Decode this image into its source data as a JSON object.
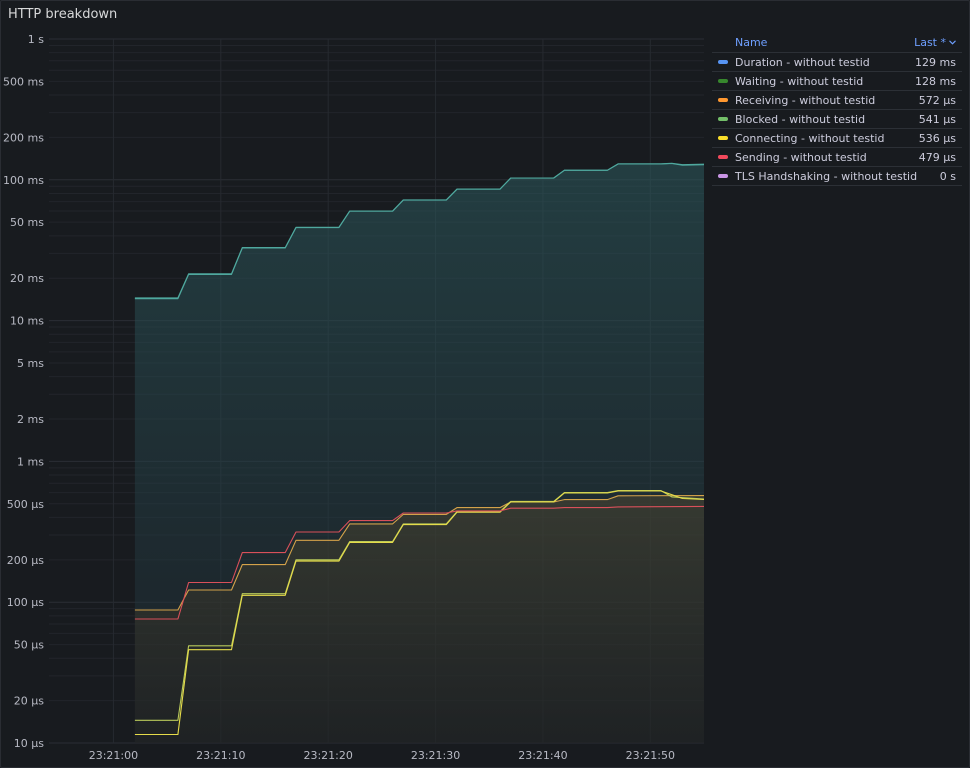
{
  "panel": {
    "title": "HTTP breakdown"
  },
  "legend": {
    "header_name": "Name",
    "header_last": "Last *",
    "sort_icon": "chevron-down-icon"
  },
  "chart_data": {
    "type": "line",
    "yscale": "log",
    "ylim": [
      1e-05,
      1
    ],
    "y_ticks": [
      {
        "v": 1,
        "label": "1 s"
      },
      {
        "v": 0.5,
        "label": "500 ms"
      },
      {
        "v": 0.2,
        "label": "200 ms"
      },
      {
        "v": 0.1,
        "label": "100 ms"
      },
      {
        "v": 0.05,
        "label": "50 ms"
      },
      {
        "v": 0.02,
        "label": "20 ms"
      },
      {
        "v": 0.01,
        "label": "10 ms"
      },
      {
        "v": 0.005,
        "label": "5 ms"
      },
      {
        "v": 0.002,
        "label": "2 ms"
      },
      {
        "v": 0.001,
        "label": "1 ms"
      },
      {
        "v": 0.0005,
        "label": "500 µs"
      },
      {
        "v": 0.0002,
        "label": "200 µs"
      },
      {
        "v": 0.0001,
        "label": "100 µs"
      },
      {
        "v": 5e-05,
        "label": "50 µs"
      },
      {
        "v": 2e-05,
        "label": "20 µs"
      },
      {
        "v": 1e-05,
        "label": "10 µs"
      }
    ],
    "x_ticks": [
      {
        "v": "23:21:00",
        "label": "23:21:00"
      },
      {
        "v": "23:21:10",
        "label": "23:21:10"
      },
      {
        "v": "23:21:20",
        "label": "23:21:20"
      },
      {
        "v": "23:21:30",
        "label": "23:21:30"
      },
      {
        "v": "23:21:40",
        "label": "23:21:40"
      },
      {
        "v": "23:21:50",
        "label": "23:21:50"
      }
    ],
    "xlim": [
      "23:20:54",
      "23:21:55"
    ],
    "grid": true,
    "legend_position": "right",
    "series": [
      {
        "name": "Duration - without testid",
        "color": "#5794f2",
        "last": "129 ms",
        "draw_color": "#4fa89e",
        "fill": true,
        "fill_color": "#2a4a55",
        "points": [
          [
            "23:21:02",
            0.0145
          ],
          [
            "23:21:06",
            0.0145
          ],
          [
            "23:21:07",
            0.0215
          ],
          [
            "23:21:11",
            0.0215
          ],
          [
            "23:21:12",
            0.033
          ],
          [
            "23:21:16",
            0.033
          ],
          [
            "23:21:17",
            0.046
          ],
          [
            "23:21:21",
            0.046
          ],
          [
            "23:21:22",
            0.06
          ],
          [
            "23:21:26",
            0.06
          ],
          [
            "23:21:27",
            0.072
          ],
          [
            "23:21:31",
            0.072
          ],
          [
            "23:21:32",
            0.086
          ],
          [
            "23:21:36",
            0.086
          ],
          [
            "23:21:37",
            0.103
          ],
          [
            "23:21:41",
            0.103
          ],
          [
            "23:21:42",
            0.117
          ],
          [
            "23:21:46",
            0.117
          ],
          [
            "23:21:47",
            0.13
          ],
          [
            "23:21:51",
            0.13
          ],
          [
            "23:21:52",
            0.131
          ],
          [
            "23:21:53",
            0.128
          ],
          [
            "23:21:55",
            0.129
          ]
        ]
      },
      {
        "name": "Waiting - without testid",
        "color": "#37872d",
        "last": "128 ms",
        "draw_color": "#4fa89e",
        "fill": false,
        "points": [
          [
            "23:21:02",
            0.0143
          ],
          [
            "23:21:06",
            0.0143
          ],
          [
            "23:21:07",
            0.0213
          ],
          [
            "23:21:11",
            0.0213
          ],
          [
            "23:21:12",
            0.0328
          ],
          [
            "23:21:16",
            0.0328
          ],
          [
            "23:21:17",
            0.0458
          ],
          [
            "23:21:21",
            0.0458
          ],
          [
            "23:21:22",
            0.0598
          ],
          [
            "23:21:26",
            0.0598
          ],
          [
            "23:21:27",
            0.0718
          ],
          [
            "23:21:31",
            0.0718
          ],
          [
            "23:21:32",
            0.0858
          ],
          [
            "23:21:36",
            0.0858
          ],
          [
            "23:21:37",
            0.1028
          ],
          [
            "23:21:41",
            0.1028
          ],
          [
            "23:21:42",
            0.1168
          ],
          [
            "23:21:46",
            0.1168
          ],
          [
            "23:21:47",
            0.1295
          ],
          [
            "23:21:51",
            0.1295
          ],
          [
            "23:21:52",
            0.1305
          ],
          [
            "23:21:53",
            0.127
          ],
          [
            "23:21:55",
            0.128
          ]
        ]
      },
      {
        "name": "Receiving - without testid",
        "color": "#ff9830",
        "last": "572 µs",
        "draw_color": "#d4a24a",
        "fill": true,
        "fill_color": "#3a3526",
        "points": [
          [
            "23:21:02",
            8.8e-05
          ],
          [
            "23:21:06",
            8.8e-05
          ],
          [
            "23:21:07",
            0.000122
          ],
          [
            "23:21:11",
            0.000122
          ],
          [
            "23:21:12",
            0.000185
          ],
          [
            "23:21:16",
            0.000185
          ],
          [
            "23:21:17",
            0.000275
          ],
          [
            "23:21:21",
            0.000275
          ],
          [
            "23:21:22",
            0.00036
          ],
          [
            "23:21:26",
            0.00036
          ],
          [
            "23:21:27",
            0.00042
          ],
          [
            "23:21:31",
            0.00042
          ],
          [
            "23:21:32",
            0.00047
          ],
          [
            "23:21:36",
            0.00047
          ],
          [
            "23:21:37",
            0.000515
          ],
          [
            "23:21:41",
            0.000515
          ],
          [
            "23:21:42",
            0.000535
          ],
          [
            "23:21:46",
            0.000535
          ],
          [
            "23:21:47",
            0.00057
          ],
          [
            "23:21:55",
            0.000572
          ]
        ]
      },
      {
        "name": "Blocked - without testid",
        "color": "#73bf69",
        "last": "541 µs",
        "draw_color": "#b8c95a",
        "fill": false,
        "points": [
          [
            "23:21:02",
            1.45e-05
          ],
          [
            "23:21:06",
            1.45e-05
          ],
          [
            "23:21:07",
            4.9e-05
          ],
          [
            "23:21:11",
            4.9e-05
          ],
          [
            "23:21:12",
            0.000115
          ],
          [
            "23:21:16",
            0.000115
          ],
          [
            "23:21:17",
            0.0002
          ],
          [
            "23:21:21",
            0.0002
          ],
          [
            "23:21:22",
            0.00027
          ],
          [
            "23:21:26",
            0.00027
          ],
          [
            "23:21:27",
            0.00036
          ],
          [
            "23:21:31",
            0.00036
          ],
          [
            "23:21:32",
            0.00044
          ],
          [
            "23:21:36",
            0.00044
          ],
          [
            "23:21:37",
            0.00052
          ],
          [
            "23:21:41",
            0.00052
          ],
          [
            "23:21:42",
            0.0006
          ],
          [
            "23:21:46",
            0.0006
          ],
          [
            "23:21:47",
            0.00062
          ],
          [
            "23:21:51",
            0.00062
          ],
          [
            "23:21:52",
            0.00056
          ],
          [
            "23:21:55",
            0.000541
          ]
        ]
      },
      {
        "name": "Connecting - without testid",
        "color": "#fade2a",
        "last": "536 µs",
        "draw_color": "#e6dc4a",
        "fill": false,
        "points": [
          [
            "23:21:02",
            1.15e-05
          ],
          [
            "23:21:06",
            1.15e-05
          ],
          [
            "23:21:07",
            4.6e-05
          ],
          [
            "23:21:11",
            4.6e-05
          ],
          [
            "23:21:12",
            0.000112
          ],
          [
            "23:21:16",
            0.000112
          ],
          [
            "23:21:17",
            0.000196
          ],
          [
            "23:21:21",
            0.000196
          ],
          [
            "23:21:22",
            0.000266
          ],
          [
            "23:21:26",
            0.000266
          ],
          [
            "23:21:27",
            0.000356
          ],
          [
            "23:21:31",
            0.000356
          ],
          [
            "23:21:32",
            0.000436
          ],
          [
            "23:21:36",
            0.000436
          ],
          [
            "23:21:37",
            0.000516
          ],
          [
            "23:21:41",
            0.000516
          ],
          [
            "23:21:42",
            0.000596
          ],
          [
            "23:21:46",
            0.000596
          ],
          [
            "23:21:47",
            0.000616
          ],
          [
            "23:21:51",
            0.000616
          ],
          [
            "23:21:52",
            0.00058
          ],
          [
            "23:21:53",
            0.000545
          ],
          [
            "23:21:55",
            0.000536
          ]
        ]
      },
      {
        "name": "Sending - without testid",
        "color": "#f2495c",
        "last": "479 µs",
        "draw_color": "#d9505a",
        "fill": false,
        "points": [
          [
            "23:21:02",
            7.6e-05
          ],
          [
            "23:21:06",
            7.6e-05
          ],
          [
            "23:21:07",
            0.000138
          ],
          [
            "23:21:11",
            0.000138
          ],
          [
            "23:21:12",
            0.000225
          ],
          [
            "23:21:16",
            0.000225
          ],
          [
            "23:21:17",
            0.000315
          ],
          [
            "23:21:21",
            0.000315
          ],
          [
            "23:21:22",
            0.00038
          ],
          [
            "23:21:26",
            0.00038
          ],
          [
            "23:21:27",
            0.00043
          ],
          [
            "23:21:31",
            0.00043
          ],
          [
            "23:21:32",
            0.000445
          ],
          [
            "23:21:36",
            0.000445
          ],
          [
            "23:21:37",
            0.000465
          ],
          [
            "23:21:41",
            0.000465
          ],
          [
            "23:21:42",
            0.00047
          ],
          [
            "23:21:46",
            0.00047
          ],
          [
            "23:21:47",
            0.000475
          ],
          [
            "23:21:55",
            0.000479
          ]
        ]
      },
      {
        "name": "TLS Handshaking - without testid",
        "color": "#ca95e5",
        "last": "0 s",
        "draw_color": "#ca95e5",
        "fill": false,
        "points": []
      }
    ]
  }
}
